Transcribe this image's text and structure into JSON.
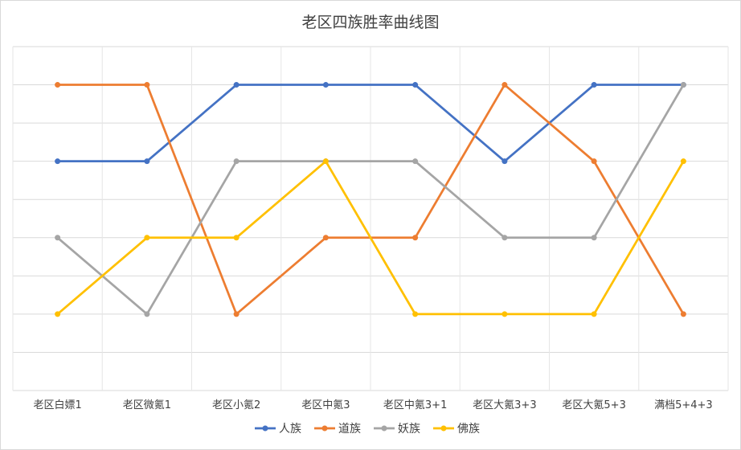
{
  "chart_data": {
    "type": "line",
    "title": "老区四族胜率曲线图",
    "xlabel": "",
    "ylabel": "",
    "categories": [
      "老区白嫖1",
      "老区微氪1",
      "老区小氪2",
      "老区中氪3",
      "老区中氪3+1",
      "老区大氪3+3",
      "老区大氪5+3",
      "满档5+4+3"
    ],
    "ylim": [
      0,
      4.5
    ],
    "grid": true,
    "legend": "bottom",
    "series": [
      {
        "name": "人族",
        "color": "#4472C4",
        "values": [
          3,
          3,
          4,
          4,
          4,
          3,
          4,
          4
        ]
      },
      {
        "name": "道族",
        "color": "#ED7D31",
        "values": [
          4,
          4,
          1,
          2,
          2,
          4,
          3,
          1
        ]
      },
      {
        "name": "妖族",
        "color": "#A5A5A5",
        "values": [
          2,
          1,
          3,
          3,
          3,
          2,
          2,
          4
        ]
      },
      {
        "name": "佛族",
        "color": "#FFC000",
        "values": [
          1,
          2,
          2,
          3,
          1,
          1,
          1,
          3
        ]
      }
    ]
  }
}
